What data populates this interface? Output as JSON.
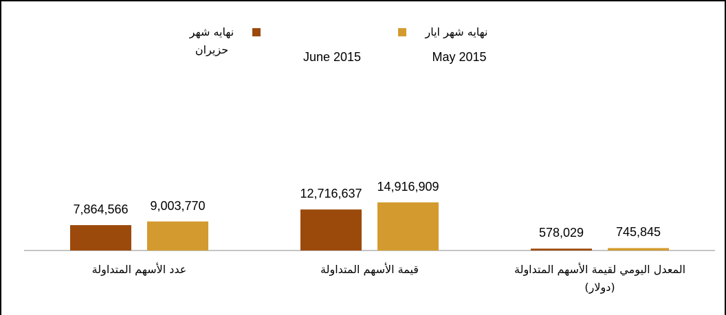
{
  "chart_data": {
    "type": "bar",
    "categories": [
      "عدد الأسهم المتداولة",
      "قيمة الأسهم المتداولة",
      "المعدل اليومي لقيمة الأسهم المتداولة\n(دولار)"
    ],
    "series": [
      {
        "name": "نهايه شهر حزيران",
        "date_label": "June 2015",
        "color": "#9c4a0c",
        "values": [
          7864566,
          12716637,
          578029
        ],
        "value_labels": [
          "7,864,566",
          "12,716,637",
          "578,029"
        ]
      },
      {
        "name": "نهايه شهر ايار",
        "date_label": "May 2015",
        "color": "#d39b2f",
        "values": [
          9003770,
          14916909,
          745845
        ],
        "value_labels": [
          "9,003,770",
          "14,916,909",
          "745,845"
        ]
      }
    ],
    "ylim": [
      0,
      40000000
    ]
  }
}
